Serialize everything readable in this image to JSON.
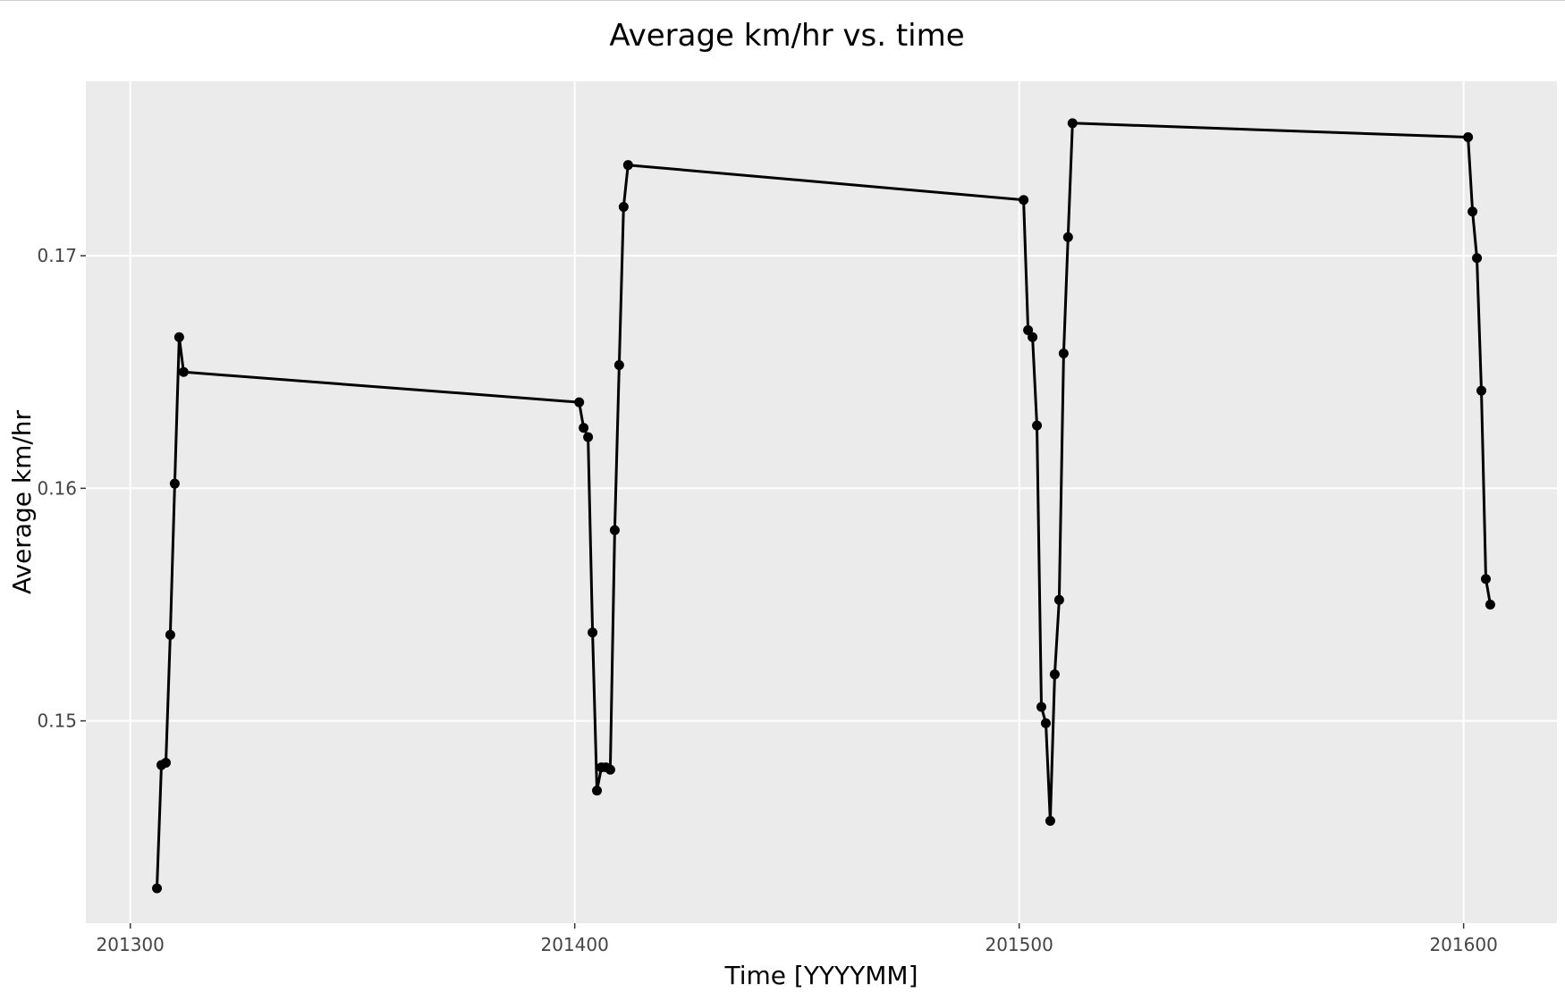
{
  "chart_data": {
    "type": "line",
    "title": "Average km/hr vs. time",
    "xlabel": "Time [YYYYMM]",
    "ylabel": "Average km/hr",
    "xlim": [
      201290,
      201621
    ],
    "ylim": [
      0.1413,
      0.1775
    ],
    "x_ticks": [
      201300,
      201400,
      201500,
      201600
    ],
    "x_tick_labels": [
      "201300",
      "201400",
      "201500",
      "201600"
    ],
    "y_ticks": [
      0.15,
      0.16,
      0.17
    ],
    "y_tick_labels": [
      "0.15",
      "0.16",
      "0.17"
    ],
    "grid": true,
    "legend": "none",
    "colors": {
      "panel": "#ebebeb",
      "grid": "#ffffff",
      "line": "#000000",
      "tick_text": "#444444"
    },
    "series": [
      {
        "x": [
          201306,
          201307,
          201308,
          201309,
          201310,
          201311,
          201312,
          201401,
          201402,
          201403,
          201404,
          201405,
          201406,
          201407,
          201408,
          201409,
          201410,
          201411,
          201412,
          201501,
          201502,
          201503,
          201504,
          201505,
          201506,
          201507,
          201508,
          201509,
          201510,
          201511,
          201512,
          201601,
          201602,
          201603,
          201604,
          201605,
          201606
        ],
        "y": [
          0.1428,
          0.1481,
          0.1482,
          0.1537,
          0.1602,
          0.1665,
          0.165,
          0.1637,
          0.1626,
          0.1622,
          0.1538,
          0.147,
          0.148,
          0.148,
          0.1479,
          0.1582,
          0.1653,
          0.1721,
          0.1739,
          0.1724,
          0.1668,
          0.1665,
          0.1627,
          0.1506,
          0.1499,
          0.1457,
          0.152,
          0.1552,
          0.1658,
          0.1708,
          0.1757,
          0.1751,
          0.1719,
          0.1699,
          0.1642,
          0.1561,
          0.155
        ]
      }
    ]
  }
}
